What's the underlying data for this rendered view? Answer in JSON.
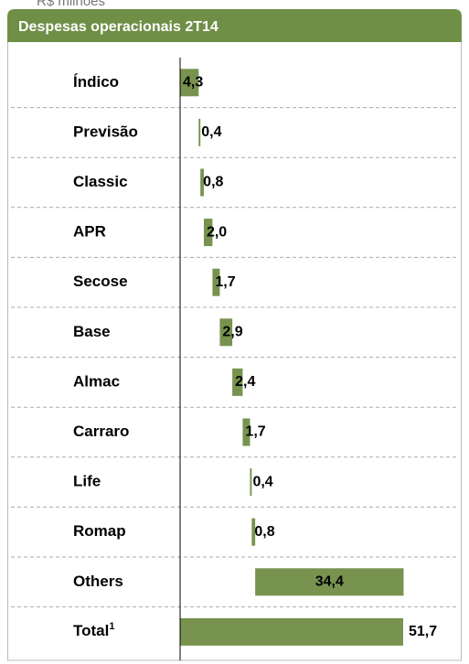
{
  "chart_data": {
    "type": "waterfall",
    "subtitle": "R$ milhões",
    "title": "Despesas operacionais 2T14",
    "categories": [
      "Índico",
      "Previsão",
      "Classic",
      "APR",
      "Secose",
      "Base",
      "Almac",
      "Carraro",
      "Life",
      "Romap",
      "Others"
    ],
    "values": [
      4.3,
      0.4,
      0.8,
      2.0,
      1.7,
      2.9,
      2.4,
      1.7,
      0.4,
      0.8,
      34.4
    ],
    "value_labels": [
      "4,3",
      "0,4",
      "0,8",
      "2,0",
      "1,7",
      "2,9",
      "2,4",
      "1,7",
      "0,4",
      "0,8",
      "34,4"
    ],
    "total": {
      "label": "Total",
      "note": "1",
      "value": 51.7,
      "value_label": "51,7"
    },
    "color": "#77934f"
  }
}
